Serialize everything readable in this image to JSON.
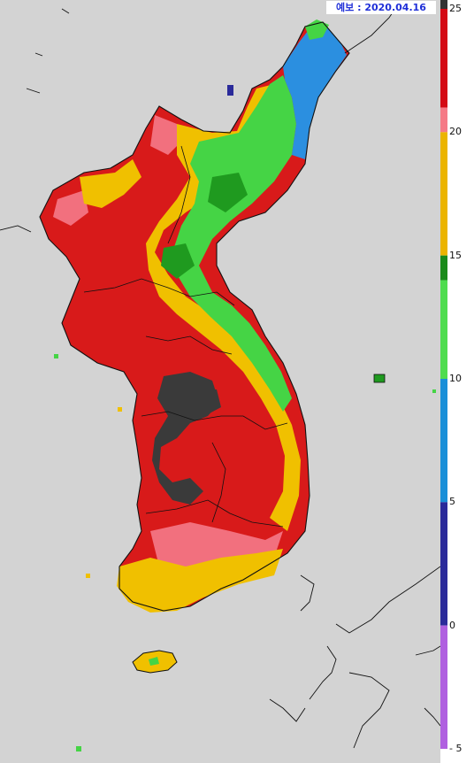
{
  "forecast_label": "예보 : 2020.04.16",
  "colorbar": {
    "ticks": [
      {
        "label": "25",
        "value": 25
      },
      {
        "label": "20",
        "value": 20
      },
      {
        "label": "15",
        "value": 15
      },
      {
        "label": "10",
        "value": 10
      },
      {
        "label": "5",
        "value": 5
      },
      {
        "label": "0",
        "value": 0
      },
      {
        "label": "- 5",
        "value": -5
      }
    ],
    "bands": [
      {
        "from": 25,
        "to": 21,
        "color": "#d40a14"
      },
      {
        "from": 21,
        "to": 20,
        "color": "#f57a86"
      },
      {
        "from": 20,
        "to": 15,
        "color": "#ebb400"
      },
      {
        "from": 15,
        "to": 14,
        "color": "#1a8a1a"
      },
      {
        "from": 14,
        "to": 10,
        "color": "#4fdc4f"
      },
      {
        "from": 10,
        "to": 5,
        "color": "#1a8fd8"
      },
      {
        "from": 5,
        "to": 0,
        "color": "#2a2a9a"
      },
      {
        "from": 0,
        "to": -5,
        "color": "#b060e0"
      }
    ]
  },
  "colors": {
    "sea": "#d3d3d3",
    "over_25": "#3a3a3a",
    "red": "#d81a1a",
    "pink": "#f2707e",
    "yellow": "#f0c000",
    "dark_green": "#1f9a1f",
    "green": "#45d445",
    "blue": "#2b8fe0",
    "coast": "#111111"
  }
}
